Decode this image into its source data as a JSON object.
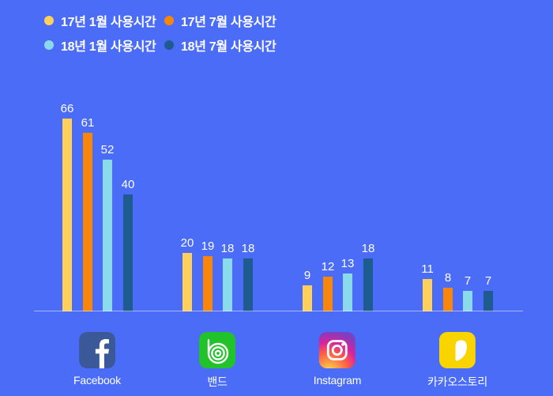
{
  "colors": {
    "background": "#4a6cf7",
    "text": "#ffffff",
    "axis_line": "rgba(255,255,255,0.5)",
    "facebook_icon": "#3b5998",
    "band_icon": "#22c32a",
    "kakaostory_icon": "#fad400"
  },
  "chart_data": {
    "type": "bar",
    "categories": [
      "Facebook",
      "밴드",
      "Instagram",
      "카카오스토리"
    ],
    "series": [
      {
        "name": "17년 1월 사용시간",
        "color": "#ffd05a",
        "values": [
          66,
          20,
          9,
          11
        ]
      },
      {
        "name": "17년 7월 사용시간",
        "color": "#f8860b",
        "values": [
          61,
          19,
          12,
          8
        ]
      },
      {
        "name": "18년 1월 사용시간",
        "color": "#89dbec",
        "values": [
          52,
          18,
          13,
          7
        ]
      },
      {
        "name": "18년 7월 사용시간",
        "color": "#1e5b90",
        "values": [
          40,
          18,
          18,
          7
        ]
      }
    ],
    "ylim": [
      0,
      70
    ],
    "grid": false,
    "value_labels": true,
    "legend_position": "top-left",
    "xlabel": "",
    "ylabel": ""
  },
  "icons": [
    {
      "name": "facebook-icon",
      "label": "Facebook"
    },
    {
      "name": "band-icon",
      "label": "밴드"
    },
    {
      "name": "instagram-icon",
      "label": "Instagram"
    },
    {
      "name": "kakaostory-icon",
      "label": "카카오스토리"
    }
  ]
}
